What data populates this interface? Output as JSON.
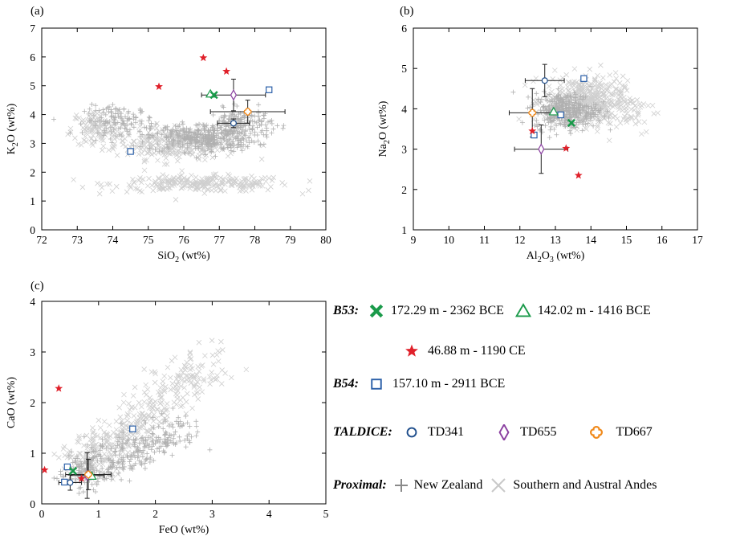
{
  "chart_data": [
    {
      "panel": "(a)",
      "type": "scatter",
      "xlabel_main": "SiO",
      "xlabel_sub": "2",
      "xlabel_rest": " (wt%)",
      "ylabel_main": "K",
      "ylabel_sub": "2",
      "ylabel_rest": "O (wt%)",
      "xlim": [
        72,
        80
      ],
      "ylim": [
        0,
        7
      ],
      "xticks": [
        72,
        73,
        74,
        75,
        76,
        77,
        78,
        79,
        80
      ],
      "yticks": [
        0,
        1,
        2,
        3,
        4,
        5,
        6,
        7
      ],
      "points": {
        "b53_172": [
          [
            76.85,
            4.68
          ]
        ],
        "b53_142": [
          [
            76.75,
            4.72
          ]
        ],
        "b53_46": [
          [
            75.3,
            4.97
          ],
          [
            76.55,
            5.97
          ],
          [
            77.2,
            5.5
          ]
        ],
        "b54_157": [
          [
            74.5,
            2.72
          ],
          [
            78.4,
            4.86
          ]
        ],
        "td341": [
          [
            77.4,
            3.7
          ]
        ],
        "td655": [
          [
            77.4,
            4.68
          ]
        ],
        "td667": [
          [
            77.8,
            4.1
          ]
        ]
      },
      "errorbars": [
        {
          "x": 77.4,
          "y": 3.7,
          "xerr": 0.45,
          "yerr": 0.15
        },
        {
          "x": 77.4,
          "y": 4.68,
          "xerr": 0.9,
          "yerr": 0.55
        },
        {
          "x": 77.8,
          "y": 4.1,
          "xerr": 1.05,
          "yerr": 0.4
        }
      ],
      "clouds": {
        "nz": {
          "desc": "cloud",
          "centers": [
            [
              76.5,
              3.2,
              1.4,
              0.45,
              350
            ],
            [
              74.2,
              3.8,
              0.9,
              0.45,
              120
            ],
            [
              77.6,
              3.7,
              0.8,
              0.45,
              150
            ]
          ]
        },
        "andes": {
          "centers": [
            [
              75.8,
              3.0,
              1.6,
              0.5,
              300
            ],
            [
              76.5,
              1.6,
              2.3,
              0.25,
              250
            ],
            [
              73.5,
              3.5,
              0.6,
              0.6,
              100
            ]
          ]
        }
      }
    },
    {
      "panel": "(b)",
      "type": "scatter",
      "xlabel_main": "Al",
      "xlabel_sub": "2",
      "xlabel_rest": "O",
      "xlabel_sub2": "3",
      "xlabel_rest2": " (wt%)",
      "ylabel_main": "Na",
      "ylabel_sub": "2",
      "ylabel_rest": "O (wt%)",
      "xlim": [
        9,
        17
      ],
      "ylim": [
        1,
        6
      ],
      "xticks": [
        9,
        10,
        11,
        12,
        13,
        14,
        15,
        16,
        17
      ],
      "yticks": [
        1,
        2,
        3,
        4,
        5,
        6
      ],
      "points": {
        "b53_172": [
          [
            13.45,
            3.65
          ]
        ],
        "b53_142": [
          [
            12.95,
            3.93
          ]
        ],
        "b53_46": [
          [
            12.35,
            3.45
          ],
          [
            13.3,
            3.02
          ],
          [
            13.65,
            2.35
          ]
        ],
        "b54_157": [
          [
            12.4,
            3.35
          ],
          [
            13.15,
            3.85
          ],
          [
            13.8,
            4.75
          ]
        ],
        "td341": [
          [
            12.7,
            4.7
          ]
        ],
        "td655": [
          [
            12.6,
            3.0
          ]
        ],
        "td667": [
          [
            12.35,
            3.9
          ]
        ]
      },
      "errorbars": [
        {
          "x": 12.7,
          "y": 4.7,
          "xerr": 0.55,
          "yerr": 0.4
        },
        {
          "x": 12.6,
          "y": 3.0,
          "xerr": 0.75,
          "yerr": 0.6
        },
        {
          "x": 12.35,
          "y": 3.9,
          "xerr": 0.65,
          "yerr": 0.6
        }
      ],
      "clouds": {
        "nz": {
          "centers": [
            [
              13.3,
              3.95,
              0.8,
              0.4,
              350
            ]
          ]
        },
        "andes": {
          "centers": [
            [
              13.8,
              4.2,
              1.0,
              0.55,
              400
            ],
            [
              14.8,
              4.0,
              1.0,
              0.6,
              80
            ]
          ]
        }
      }
    },
    {
      "panel": "(c)",
      "type": "scatter",
      "xlabel_main": "FeO",
      "xlabel_sub": "",
      "xlabel_rest": " (wt%)",
      "ylabel_main": "CaO",
      "ylabel_sub": "",
      "ylabel_rest": " (wt%)",
      "xlim": [
        0,
        5
      ],
      "ylim": [
        0,
        4
      ],
      "xticks": [
        0,
        1,
        2,
        3,
        4,
        5
      ],
      "yticks": [
        0,
        1,
        2,
        3,
        4
      ],
      "points": {
        "b53_172": [
          [
            0.55,
            0.65
          ]
        ],
        "b53_142": [
          [
            0.88,
            0.55
          ]
        ],
        "b53_46": [
          [
            0.05,
            0.67
          ],
          [
            0.3,
            2.28
          ],
          [
            0.7,
            0.5
          ]
        ],
        "b54_157": [
          [
            0.45,
            0.73
          ],
          [
            0.4,
            0.43
          ],
          [
            1.6,
            1.48
          ]
        ],
        "td341": [
          [
            0.5,
            0.42
          ]
        ],
        "td655": [
          [
            0.8,
            0.56
          ]
        ],
        "td667": [
          [
            0.82,
            0.58
          ]
        ]
      },
      "errorbars": [
        {
          "x": 0.5,
          "y": 0.42,
          "xerr": 0.2,
          "yerr": 0.15
        },
        {
          "x": 0.8,
          "y": 0.56,
          "xerr": 0.3,
          "yerr": 0.45
        },
        {
          "x": 0.82,
          "y": 0.58,
          "xerr": 0.4,
          "yerr": 0.3
        }
      ],
      "clouds": {
        "nz": {
          "line": [
            [
              0.6,
              0.6
            ],
            [
              2.6,
              1.5
            ]
          ],
          "spread": 0.18,
          "n": 350
        },
        "andes": {
          "line": [
            [
              0.7,
              0.7
            ],
            [
              3.0,
              2.9
            ]
          ],
          "spread": 0.22,
          "n": 400
        }
      }
    }
  ],
  "legend": {
    "b53_label": "B53:",
    "b53_172": "172.29 m - 2362 BCE",
    "b53_142": "142.02 m - 1416 BCE",
    "b53_46": "46.88 m - 1190 CE",
    "b54_label": "B54:",
    "b54_157": "157.10 m - 2911 BCE",
    "taldice_label": "TALDICE:",
    "td341": "TD341",
    "td655": "TD655",
    "td667": "TD667",
    "proximal_label": "Proximal:",
    "nz": "New Zealand",
    "andes": "Southern and Austral Andes"
  },
  "colors": {
    "b53_172": "#1a9a4a",
    "b53_142": "#1a9a4a",
    "b53_46": "#e0202a",
    "b54_157": "#2a5fa8",
    "td341": "#1f4e8c",
    "td655": "#8a3fa0",
    "td667": "#f08a1c",
    "nz": "#8a8a8a",
    "andes": "#c8c8c8",
    "cloud_nz": "#b0b0b0",
    "cloud_andes": "#cfcfcf"
  }
}
